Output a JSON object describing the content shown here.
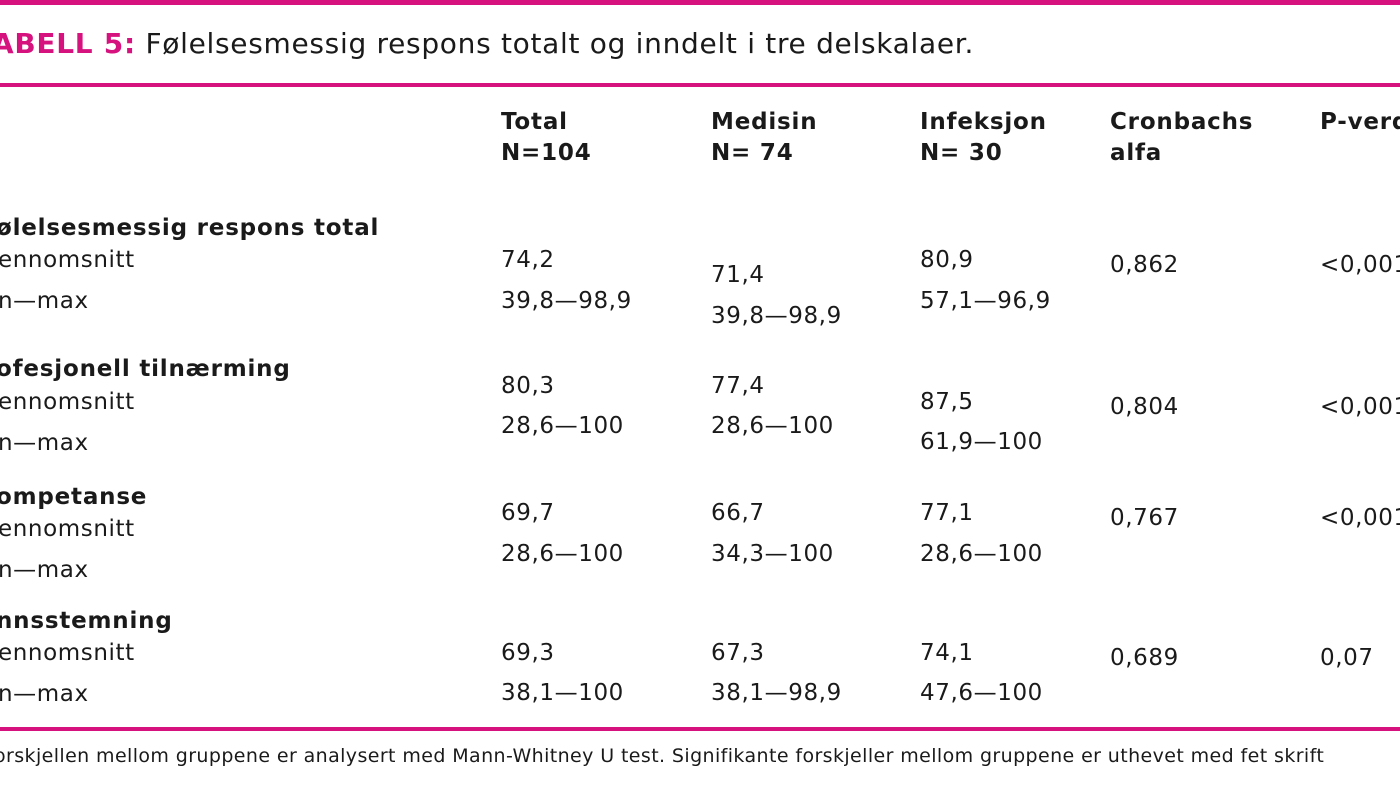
{
  "table": {
    "title_label": "ABELL 5:",
    "title_text": " Følelsesmessig respons totalt og inndelt i tre delskalaer.",
    "columns": {
      "total": [
        "Total",
        "N=104"
      ],
      "medisin": [
        "Medisin",
        "N= 74"
      ],
      "infeksjon": [
        "Infeksjon",
        "N= 30"
      ],
      "cronbach": [
        "Cronbachs",
        "alfa"
      ],
      "p": [
        "P-verd"
      ]
    },
    "rows": [
      {
        "heading": "ølelsesmessig respons total",
        "sub1": "ennomsnitt",
        "sub2": "n—max",
        "total": [
          "74,2",
          "39,8—98,9"
        ],
        "medisin": [
          "71,4",
          "39,8—98,9"
        ],
        "infeksjon": [
          "80,9",
          "57,1—96,9"
        ],
        "cronbach": "0,862",
        "p": "<0,001"
      },
      {
        "heading": "ofesjonell tilnærming",
        "sub1": "ennomsnitt",
        "sub2": "n—max",
        "total": [
          "80,3",
          "28,6—100"
        ],
        "medisin": [
          "77,4",
          "28,6—100"
        ],
        "infeksjon": [
          "87,5",
          "61,9—100"
        ],
        "cronbach": "0,804",
        "p": "<0,001"
      },
      {
        "heading": "ompetanse",
        "sub1": "ennomsnitt",
        "sub2": "n—max",
        "total": [
          "69,7",
          "28,6—100"
        ],
        "medisin": [
          "66,7",
          "34,3—100"
        ],
        "infeksjon": [
          "77,1",
          "28,6—100"
        ],
        "cronbach": "0,767",
        "p": "<0,001"
      },
      {
        "heading": "nnsstemning",
        "sub1": "ennomsnitt",
        "sub2": "n—max",
        "total": [
          "69,3",
          "38,1—100"
        ],
        "medisin": [
          "67,3",
          "38,1—98,9"
        ],
        "infeksjon": [
          "74,1",
          "47,6—100"
        ],
        "cronbach": "0,689",
        "p": "0,07"
      }
    ],
    "footnote": "orskjellen mellom gruppene er analysert med Mann-Whitney U test. Signifikante forskjeller mellom gruppene er uthevet med fet skrift"
  },
  "colors": {
    "accent": "#d6127f",
    "text": "#1a1a1a"
  }
}
